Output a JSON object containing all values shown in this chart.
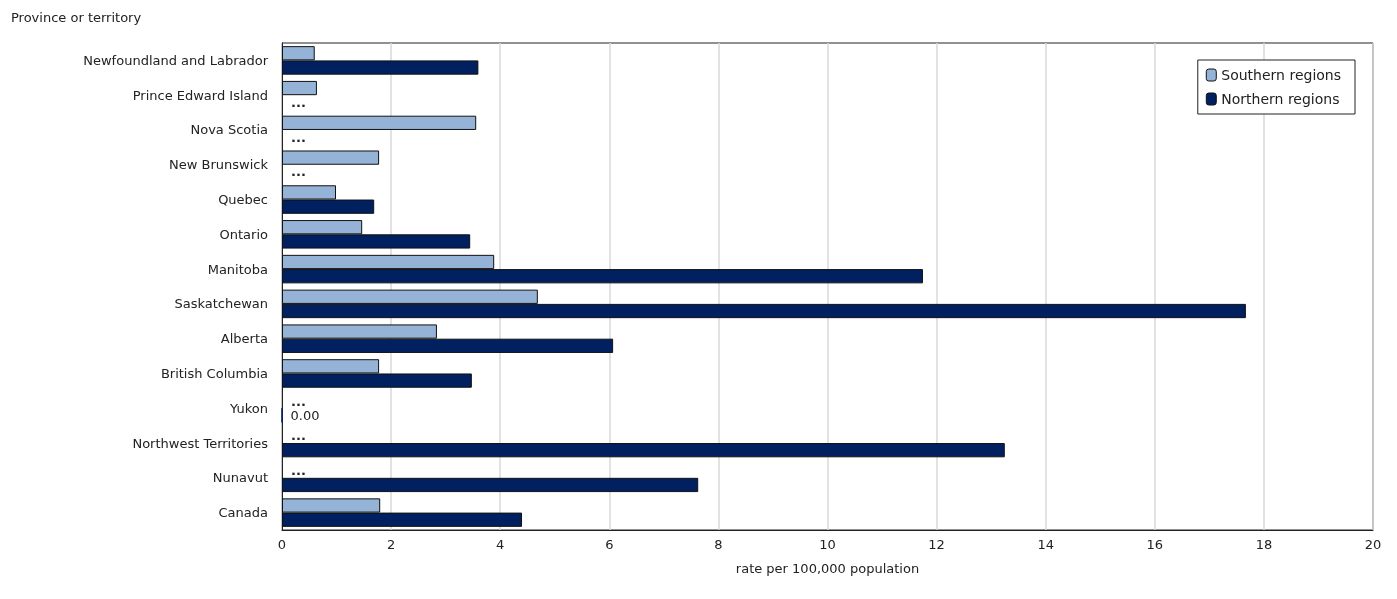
{
  "chart_data": {
    "type": "bar",
    "orientation": "horizontal",
    "ylabel": "Province or territory",
    "xlabel": "rate per 100,000 population",
    "categories": [
      "Newfoundland and Labrador",
      "Prince Edward Island",
      "Nova Scotia",
      "New Brunswick",
      "Quebec",
      "Ontario",
      "Manitoba",
      "Saskatchewan",
      "Alberta",
      "British Columbia",
      "Yukon",
      "Northwest Territories",
      "Nunavut",
      "Canada"
    ],
    "series": [
      {
        "name": "Southern regions",
        "color": "#95b3d7",
        "values": [
          0.6,
          0.64,
          3.56,
          1.78,
          0.99,
          1.47,
          3.89,
          4.69,
          2.84,
          1.78,
          null,
          null,
          null,
          1.8
        ],
        "value_labels": [
          null,
          null,
          null,
          null,
          null,
          null,
          null,
          null,
          null,
          null,
          "...",
          "...",
          "...",
          null
        ]
      },
      {
        "name": "Northern regions",
        "color": "#002060",
        "values": [
          3.6,
          null,
          null,
          null,
          1.69,
          3.45,
          11.75,
          17.67,
          6.07,
          3.48,
          0,
          13.25,
          7.63,
          4.4
        ],
        "value_labels": [
          null,
          "...",
          "...",
          "...",
          null,
          null,
          null,
          null,
          null,
          null,
          "0.00",
          null,
          null,
          null
        ]
      }
    ],
    "xlim": [
      0,
      20
    ],
    "xticks": [
      0,
      2,
      4,
      6,
      8,
      10,
      12,
      14,
      16,
      18,
      20
    ],
    "grid": "x",
    "legend": "top right"
  }
}
